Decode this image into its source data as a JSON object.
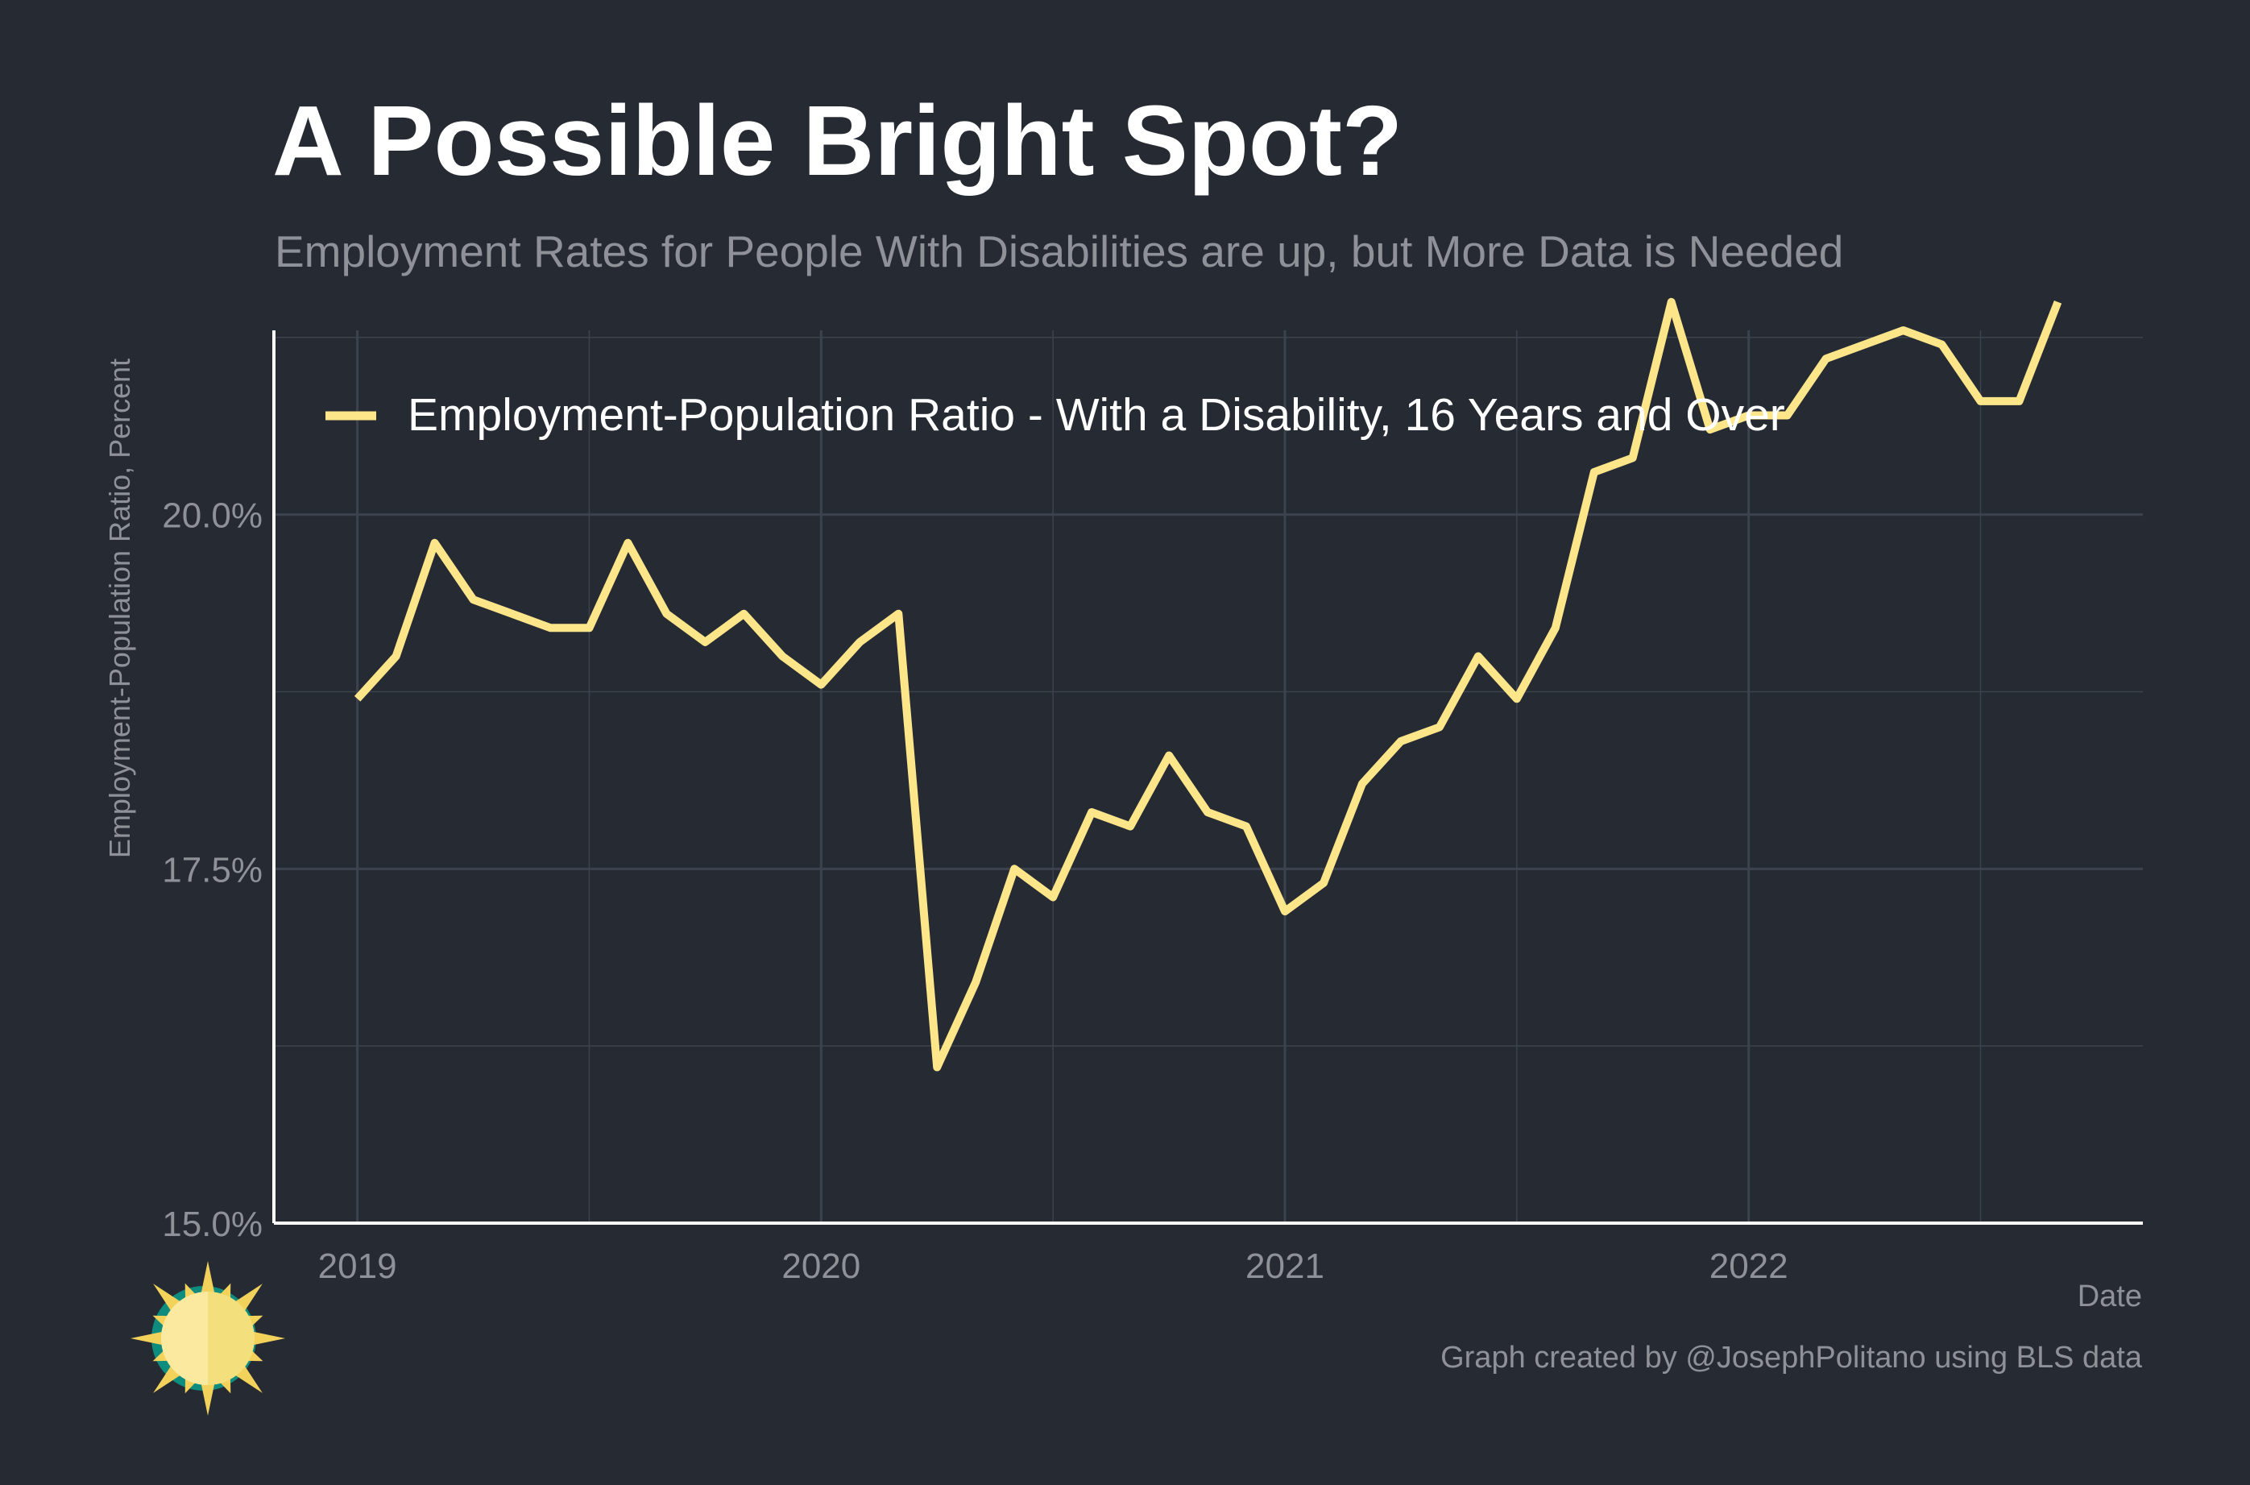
{
  "title": "A Possible Bright Spot?",
  "subtitle": "Employment Rates for People With Disabilities are up, but More Data is Needed",
  "caption": "Graph created by @JosephPolitano using BLS data",
  "colors": {
    "background": "#252a33",
    "line": "#fde68a",
    "grid": "#3d434e",
    "axis": "#ffffff",
    "muted": "#8e9197"
  },
  "logo_icon": "sun-icon",
  "chart_data": {
    "type": "line",
    "xlabel": "Date",
    "ylabel": "Employment-Population Ratio, Percent",
    "ylim": [
      15.0,
      21.3
    ],
    "x_ticks": [
      "2019",
      "2020",
      "2021",
      "2022"
    ],
    "y_ticks": [
      "15.0%",
      "17.5%",
      "20.0%"
    ],
    "y_tick_values": [
      15.0,
      17.5,
      20.0
    ],
    "grid": true,
    "legend_position": "top-left",
    "series": [
      {
        "name": "Employment-Population Ratio - With a Disability, 16 Years and Over",
        "x": [
          "2019-01",
          "2019-02",
          "2019-03",
          "2019-04",
          "2019-05",
          "2019-06",
          "2019-07",
          "2019-08",
          "2019-09",
          "2019-10",
          "2019-11",
          "2019-12",
          "2020-01",
          "2020-02",
          "2020-03",
          "2020-04",
          "2020-05",
          "2020-06",
          "2020-07",
          "2020-08",
          "2020-09",
          "2020-10",
          "2020-11",
          "2020-12",
          "2021-01",
          "2021-02",
          "2021-03",
          "2021-04",
          "2021-05",
          "2021-06",
          "2021-07",
          "2021-08",
          "2021-09",
          "2021-10",
          "2021-11",
          "2021-12",
          "2022-01",
          "2022-02",
          "2022-03",
          "2022-04",
          "2022-05",
          "2022-06",
          "2022-07",
          "2022-08",
          "2022-09"
        ],
        "values": [
          18.7,
          19.0,
          19.8,
          19.4,
          19.3,
          19.2,
          19.2,
          19.8,
          19.3,
          19.1,
          19.3,
          19.0,
          18.8,
          19.1,
          19.3,
          16.1,
          16.7,
          17.5,
          17.3,
          17.9,
          17.8,
          18.3,
          17.9,
          17.8,
          17.2,
          17.4,
          18.1,
          18.4,
          18.5,
          19.0,
          18.7,
          19.2,
          20.3,
          20.4,
          21.5,
          20.6,
          20.7,
          20.7,
          21.1,
          21.2,
          21.3,
          21.2,
          20.8,
          20.8,
          21.5
        ]
      }
    ]
  }
}
